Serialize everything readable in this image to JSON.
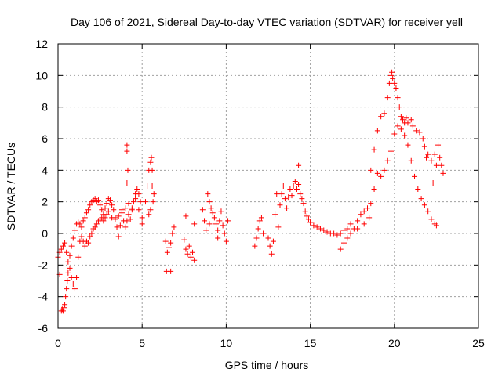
{
  "chart_data": {
    "type": "scatter",
    "title": "Day 106 of 2021, Sidereal Day-to-day VTEC variation (SDTVAR) for receiver yell",
    "xlabel": "GPS time / hours",
    "ylabel": "SDTVAR / TECUs",
    "xlim": [
      0,
      25
    ],
    "ylim": [
      -6,
      12
    ],
    "xticks": [
      "0",
      "5",
      "10",
      "15",
      "20",
      "25"
    ],
    "yticks": [
      "-6",
      "-4",
      "-2",
      "0",
      "2",
      "4",
      "6",
      "8",
      "10",
      "12"
    ],
    "grid": true,
    "marker": "+",
    "color": "#ff0000",
    "series": [
      {
        "name": "SDTVAR",
        "points": [
          [
            0.0,
            -1.5
          ],
          [
            0.1,
            -2.6
          ],
          [
            0.2,
            -4.9
          ],
          [
            0.25,
            -4.8
          ],
          [
            0.3,
            -4.9
          ],
          [
            0.35,
            -4.7
          ],
          [
            0.4,
            -4.5
          ],
          [
            0.45,
            -4.0
          ],
          [
            0.5,
            -3.5
          ],
          [
            0.55,
            -3.0
          ],
          [
            0.6,
            -2.5
          ],
          [
            0.7,
            -2.2
          ],
          [
            0.8,
            -2.8
          ],
          [
            0.9,
            -3.2
          ],
          [
            1.0,
            -3.5
          ],
          [
            1.1,
            -2.8
          ],
          [
            1.2,
            -1.5
          ],
          [
            1.3,
            -0.5
          ],
          [
            1.4,
            -0.2
          ],
          [
            1.5,
            -0.5
          ],
          [
            1.6,
            -0.8
          ],
          [
            1.7,
            -0.5
          ],
          [
            1.8,
            -0.6
          ],
          [
            1.9,
            -0.2
          ],
          [
            2.0,
            0.0
          ],
          [
            2.1,
            0.3
          ],
          [
            2.2,
            0.4
          ],
          [
            2.3,
            0.6
          ],
          [
            2.4,
            0.8
          ],
          [
            2.5,
            0.9
          ],
          [
            2.6,
            1.0
          ],
          [
            2.7,
            0.8
          ],
          [
            2.8,
            1.0
          ],
          [
            2.9,
            1.2
          ],
          [
            3.0,
            1.4
          ],
          [
            3.2,
            1.0
          ],
          [
            3.4,
            0.9
          ],
          [
            3.6,
            1.1
          ],
          [
            3.8,
            1.3
          ],
          [
            4.0,
            1.6
          ],
          [
            4.2,
            1.9
          ],
          [
            4.4,
            1.6
          ],
          [
            4.6,
            2.2
          ],
          [
            4.8,
            1.5
          ],
          [
            5.0,
            0.6
          ],
          [
            0.1,
            -1.2
          ],
          [
            0.2,
            -1.0
          ],
          [
            0.3,
            -0.8
          ],
          [
            0.4,
            -0.6
          ],
          [
            0.5,
            -1.2
          ],
          [
            0.6,
            -1.8
          ],
          [
            0.7,
            -1.4
          ],
          [
            0.8,
            -0.8
          ],
          [
            0.9,
            -0.3
          ],
          [
            1.0,
            0.2
          ],
          [
            1.1,
            0.6
          ],
          [
            1.2,
            0.7
          ],
          [
            1.3,
            0.6
          ],
          [
            1.4,
            0.4
          ],
          [
            1.5,
            0.8
          ],
          [
            1.6,
            1.0
          ],
          [
            1.7,
            1.3
          ],
          [
            1.8,
            1.5
          ],
          [
            1.9,
            1.8
          ],
          [
            2.0,
            2.0
          ],
          [
            2.1,
            2.1
          ],
          [
            2.2,
            2.2
          ],
          [
            2.3,
            2.0
          ],
          [
            2.4,
            2.1
          ],
          [
            2.5,
            1.8
          ],
          [
            2.6,
            1.5
          ],
          [
            2.7,
            1.2
          ],
          [
            2.8,
            1.6
          ],
          [
            2.9,
            1.9
          ],
          [
            3.0,
            2.2
          ],
          [
            3.1,
            2.1
          ],
          [
            3.2,
            1.8
          ],
          [
            3.3,
            1.5
          ],
          [
            3.4,
            1.0
          ],
          [
            3.5,
            0.4
          ],
          [
            3.6,
            -0.2
          ],
          [
            3.7,
            0.5
          ],
          [
            3.8,
            1.5
          ],
          [
            3.9,
            0.8
          ],
          [
            4.0,
            0.4
          ],
          [
            4.1,
            0.8
          ],
          [
            4.2,
            1.2
          ],
          [
            4.3,
            0.9
          ],
          [
            4.4,
            1.5
          ],
          [
            4.5,
            2.0
          ],
          [
            4.6,
            2.5
          ],
          [
            4.7,
            2.8
          ],
          [
            4.8,
            2.5
          ],
          [
            4.9,
            2.0
          ],
          [
            5.0,
            1.0
          ],
          [
            4.1,
            5.6
          ],
          [
            4.1,
            5.2
          ],
          [
            4.15,
            4.0
          ],
          [
            4.1,
            3.2
          ],
          [
            5.2,
            2.0
          ],
          [
            5.3,
            3.0
          ],
          [
            5.4,
            4.0
          ],
          [
            5.5,
            4.5
          ],
          [
            5.55,
            4.8
          ],
          [
            5.6,
            4.0
          ],
          [
            5.6,
            3.0
          ],
          [
            5.7,
            2.5
          ],
          [
            5.65,
            2.0
          ],
          [
            5.5,
            1.5
          ],
          [
            5.4,
            1.2
          ],
          [
            6.4,
            -0.5
          ],
          [
            6.5,
            -1.2
          ],
          [
            6.6,
            -0.9
          ],
          [
            6.7,
            -0.6
          ],
          [
            6.8,
            0.0
          ],
          [
            6.9,
            0.4
          ],
          [
            6.7,
            -2.4
          ],
          [
            6.45,
            -2.4
          ],
          [
            7.5,
            -0.4
          ],
          [
            7.6,
            -1.0
          ],
          [
            7.7,
            -1.3
          ],
          [
            7.8,
            -0.8
          ],
          [
            7.9,
            -1.5
          ],
          [
            8.0,
            -1.2
          ],
          [
            8.1,
            -1.7
          ],
          [
            7.6,
            1.1
          ],
          [
            8.1,
            0.6
          ],
          [
            8.6,
            1.5
          ],
          [
            8.7,
            0.8
          ],
          [
            8.8,
            0.2
          ],
          [
            8.9,
            2.5
          ],
          [
            9.0,
            2.0
          ],
          [
            9.1,
            1.6
          ],
          [
            9.2,
            1.3
          ],
          [
            9.3,
            1.0
          ],
          [
            9.4,
            0.6
          ],
          [
            9.5,
            0.2
          ],
          [
            9.6,
            0.8
          ],
          [
            9.7,
            1.4
          ],
          [
            9.8,
            0.5
          ],
          [
            9.9,
            0.0
          ],
          [
            10.0,
            -0.5
          ],
          [
            10.1,
            0.8
          ],
          [
            9.5,
            -0.3
          ],
          [
            9.0,
            0.6
          ],
          [
            11.7,
            -0.8
          ],
          [
            11.8,
            -0.3
          ],
          [
            11.9,
            0.3
          ],
          [
            12.0,
            0.8
          ],
          [
            12.1,
            1.0
          ],
          [
            12.2,
            0.0
          ],
          [
            12.5,
            -0.3
          ],
          [
            12.6,
            -0.8
          ],
          [
            12.7,
            -1.3
          ],
          [
            12.8,
            -0.5
          ],
          [
            12.9,
            1.2
          ],
          [
            13.1,
            0.4
          ],
          [
            13.2,
            1.8
          ],
          [
            13.3,
            2.5
          ],
          [
            13.4,
            3.0
          ],
          [
            13.5,
            2.2
          ],
          [
            13.6,
            1.6
          ],
          [
            13.7,
            2.3
          ],
          [
            13.8,
            2.8
          ],
          [
            13.9,
            2.4
          ],
          [
            14.0,
            3.0
          ],
          [
            14.1,
            3.3
          ],
          [
            14.2,
            2.8
          ],
          [
            14.3,
            3.1
          ],
          [
            14.4,
            2.5
          ],
          [
            14.5,
            2.2
          ],
          [
            14.6,
            1.9
          ],
          [
            14.7,
            1.4
          ],
          [
            14.8,
            1.1
          ],
          [
            14.9,
            0.9
          ],
          [
            15.0,
            0.7
          ],
          [
            15.2,
            0.5
          ],
          [
            15.4,
            0.4
          ],
          [
            15.6,
            0.3
          ],
          [
            15.8,
            0.2
          ],
          [
            16.0,
            0.1
          ],
          [
            16.2,
            0.0
          ],
          [
            16.4,
            0.0
          ],
          [
            16.6,
            -0.1
          ],
          [
            16.8,
            0.0
          ],
          [
            17.0,
            0.2
          ],
          [
            17.2,
            0.3
          ],
          [
            17.4,
            0.6
          ],
          [
            14.3,
            4.3
          ],
          [
            13.0,
            2.5
          ],
          [
            16.8,
            -1.0
          ],
          [
            17.0,
            -0.6
          ],
          [
            17.2,
            -0.3
          ],
          [
            17.4,
            0.0
          ],
          [
            17.6,
            0.3
          ],
          [
            17.8,
            0.8
          ],
          [
            18.0,
            1.2
          ],
          [
            18.2,
            1.4
          ],
          [
            18.4,
            1.6
          ],
          [
            18.6,
            1.9
          ],
          [
            18.8,
            2.8
          ],
          [
            19.0,
            3.8
          ],
          [
            19.2,
            3.6
          ],
          [
            19.4,
            4.0
          ],
          [
            19.6,
            4.6
          ],
          [
            19.8,
            5.2
          ],
          [
            20.0,
            6.3
          ],
          [
            20.2,
            6.8
          ],
          [
            20.4,
            6.6
          ],
          [
            20.6,
            6.2
          ],
          [
            20.8,
            5.6
          ],
          [
            21.0,
            4.6
          ],
          [
            21.2,
            3.6
          ],
          [
            21.4,
            2.8
          ],
          [
            21.6,
            2.2
          ],
          [
            21.8,
            1.8
          ],
          [
            22.0,
            1.4
          ],
          [
            22.2,
            0.9
          ],
          [
            22.4,
            0.6
          ],
          [
            22.5,
            0.5
          ],
          [
            17.8,
            0.3
          ],
          [
            18.2,
            0.6
          ],
          [
            18.5,
            1.0
          ],
          [
            18.6,
            4.0
          ],
          [
            18.8,
            5.3
          ],
          [
            19.0,
            6.5
          ],
          [
            19.2,
            7.4
          ],
          [
            19.4,
            7.6
          ],
          [
            19.6,
            8.6
          ],
          [
            19.7,
            9.5
          ],
          [
            19.8,
            10.0
          ],
          [
            19.85,
            10.2
          ],
          [
            19.9,
            9.8
          ],
          [
            20.0,
            9.5
          ],
          [
            20.1,
            9.2
          ],
          [
            20.2,
            8.6
          ],
          [
            20.3,
            8.0
          ],
          [
            20.4,
            7.4
          ],
          [
            20.5,
            7.2
          ],
          [
            20.6,
            7.0
          ],
          [
            20.7,
            7.3
          ],
          [
            20.8,
            7.0
          ],
          [
            21.0,
            7.2
          ],
          [
            21.1,
            6.8
          ],
          [
            21.3,
            6.5
          ],
          [
            21.5,
            6.4
          ],
          [
            21.7,
            6.0
          ],
          [
            21.8,
            5.5
          ],
          [
            22.0,
            5.0
          ],
          [
            22.2,
            4.6
          ],
          [
            22.4,
            5.0
          ],
          [
            22.6,
            5.6
          ],
          [
            22.7,
            4.8
          ],
          [
            22.8,
            4.3
          ],
          [
            22.9,
            3.8
          ],
          [
            22.3,
            3.2
          ],
          [
            22.5,
            4.3
          ],
          [
            21.9,
            4.8
          ]
        ]
      }
    ]
  }
}
